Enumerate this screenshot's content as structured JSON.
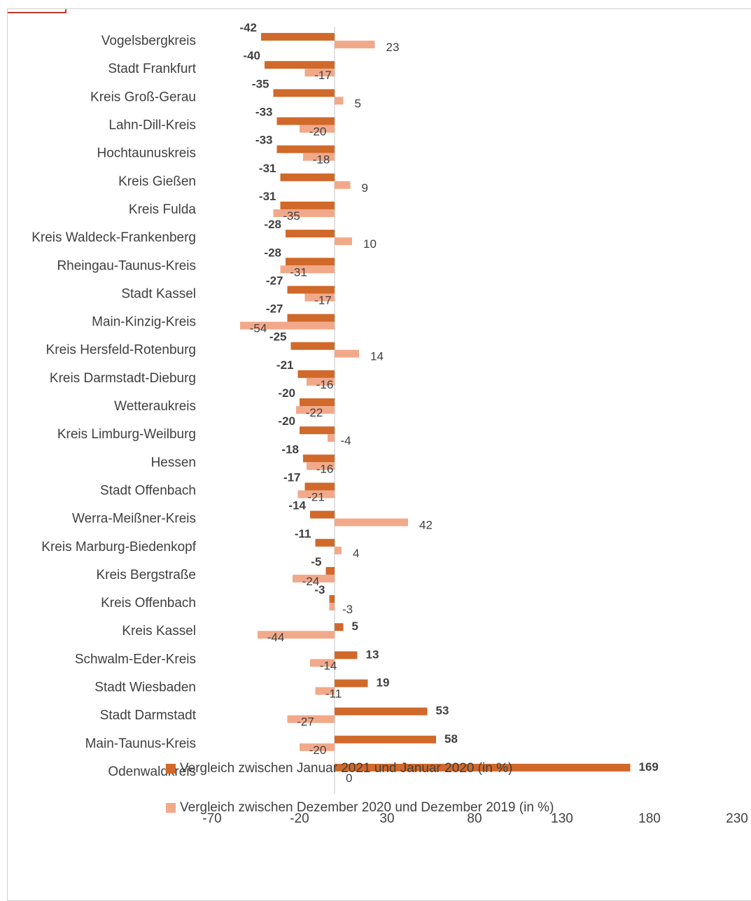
{
  "colors": {
    "series_a": "#D0692A",
    "series_b": "#F2A98A",
    "axis": "#d9d9d9",
    "text": "#404040"
  },
  "chart_data": {
    "type": "bar",
    "orientation": "horizontal",
    "categories": [
      "Vogelsbergkreis",
      "Stadt Frankfurt",
      "Kreis Groß-Gerau",
      "Lahn-Dill-Kreis",
      "Hochtaunuskreis",
      "Kreis Gießen",
      "Kreis Fulda",
      "Kreis Waldeck-Frankenberg",
      "Rheingau-Taunus-Kreis",
      "Stadt Kassel",
      "Main-Kinzig-Kreis",
      "Kreis Hersfeld-Rotenburg",
      "Kreis Darmstadt-Dieburg",
      "Wetteraukreis",
      "Kreis Limburg-Weilburg",
      "Hessen",
      "Stadt Offenbach",
      "Werra-Meißner-Kreis",
      "Kreis Marburg-Biedenkopf",
      "Kreis Bergstraße",
      "Kreis Offenbach",
      "Kreis Kassel",
      "Schwalm-Eder-Kreis",
      "Stadt Wiesbaden",
      "Stadt Darmstadt",
      "Main-Taunus-Kreis",
      "Odenwaldkreis"
    ],
    "series": [
      {
        "name": "Vergleich zwischen Januar 2021 und Januar 2020 (in %)",
        "values": [
          -42,
          -40,
          -35,
          -33,
          -33,
          -31,
          -31,
          -28,
          -28,
          -27,
          -27,
          -25,
          -21,
          -20,
          -20,
          -18,
          -17,
          -14,
          -11,
          -5,
          -3,
          5,
          13,
          19,
          53,
          58,
          169
        ]
      },
      {
        "name": "Vergleich zwischen Dezember 2020 und Dezember  2019 (in %)",
        "values": [
          23,
          -17,
          5,
          -20,
          -18,
          9,
          -35,
          10,
          -31,
          -17,
          -54,
          14,
          -16,
          -22,
          -4,
          -16,
          -21,
          42,
          4,
          -24,
          -3,
          -44,
          -14,
          -11,
          -27,
          -20,
          0
        ]
      }
    ],
    "xlim": [
      -70,
      230
    ],
    "xticks": [
      -70,
      -20,
      30,
      80,
      130,
      180,
      230
    ],
    "legend_position": "bottom"
  }
}
